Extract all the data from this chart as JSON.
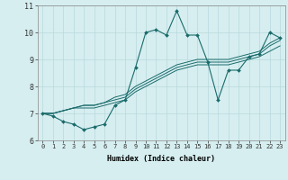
{
  "xlabel": "Humidex (Indice chaleur)",
  "bg_color": "#d6eef0",
  "grid_color": "#b8d8dc",
  "line_color": "#1a6b6b",
  "xlim": [
    -0.5,
    23.5
  ],
  "ylim": [
    6.0,
    11.0
  ],
  "yticks": [
    6,
    7,
    8,
    9,
    10,
    11
  ],
  "xticks": [
    0,
    1,
    2,
    3,
    4,
    5,
    6,
    7,
    8,
    9,
    10,
    11,
    12,
    13,
    14,
    15,
    16,
    17,
    18,
    19,
    20,
    21,
    22,
    23
  ],
  "series": [
    [
      7.0,
      6.9,
      6.7,
      6.6,
      6.4,
      6.5,
      6.6,
      7.3,
      7.5,
      8.7,
      10.0,
      10.1,
      9.9,
      10.8,
      9.9,
      9.9,
      8.9,
      7.5,
      8.6,
      8.6,
      9.1,
      9.2,
      10.0,
      9.8
    ],
    [
      7.0,
      7.0,
      7.1,
      7.2,
      7.2,
      7.2,
      7.3,
      7.4,
      7.5,
      7.8,
      8.0,
      8.2,
      8.4,
      8.6,
      8.7,
      8.8,
      8.8,
      8.8,
      8.8,
      8.9,
      9.0,
      9.1,
      9.3,
      9.5
    ],
    [
      7.0,
      7.0,
      7.1,
      7.2,
      7.3,
      7.3,
      7.4,
      7.5,
      7.6,
      7.9,
      8.1,
      8.3,
      8.5,
      8.7,
      8.8,
      8.9,
      8.9,
      8.9,
      8.9,
      9.0,
      9.1,
      9.2,
      9.5,
      9.7
    ],
    [
      7.0,
      7.0,
      7.1,
      7.2,
      7.3,
      7.3,
      7.4,
      7.6,
      7.7,
      8.0,
      8.2,
      8.4,
      8.6,
      8.8,
      8.9,
      9.0,
      9.0,
      9.0,
      9.0,
      9.1,
      9.2,
      9.3,
      9.6,
      9.8
    ]
  ],
  "xlabel_fontsize": 6.0,
  "tick_fontsize": 5.0,
  "ytick_fontsize": 6.0
}
